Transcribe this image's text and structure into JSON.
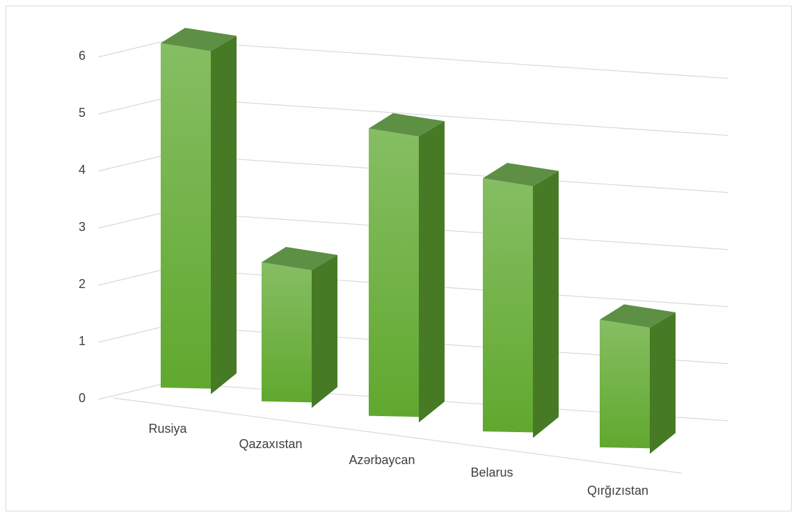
{
  "chart_data": {
    "type": "bar",
    "style": "3d-column",
    "title": "",
    "xlabel": "",
    "ylabel": "",
    "categories": [
      "Rusiya",
      "Qazaxıstan",
      "Azərbaycan",
      "Belarus",
      "Qırğızıstan"
    ],
    "values": [
      6,
      2.4,
      5,
      4.4,
      2.2
    ],
    "ylim": [
      0,
      6
    ],
    "yticks": [
      "0",
      "1",
      "2",
      "3",
      "4",
      "5",
      "6"
    ],
    "grid": true,
    "legend": "none",
    "colors": {
      "bar_front_light": "#86be63",
      "bar_front_dark": "#60a82e",
      "bar_side": "#467a25",
      "bar_top": "#5d8f45",
      "grid": "#d9d9d9",
      "text": "#404040"
    }
  }
}
